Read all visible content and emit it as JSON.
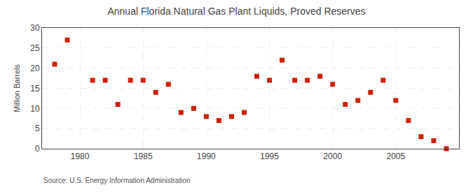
{
  "chart_data": {
    "type": "scatter",
    "title": "Annual Florida Natural Gas Plant Liquids, Proved Reserves",
    "ylabel": "Million Barrels",
    "annotations": [
      "Source: U.S. Energy Information Administration"
    ],
    "x": [
      1978,
      1979,
      1981,
      1982,
      1983,
      1984,
      1985,
      1986,
      1987,
      1988,
      1989,
      1990,
      1991,
      1992,
      1993,
      1994,
      1995,
      1996,
      1997,
      1998,
      1999,
      2000,
      2001,
      2002,
      2003,
      2004,
      2005,
      2006,
      2007,
      2008,
      2009
    ],
    "values": [
      21,
      27,
      17,
      17,
      11,
      17,
      17,
      14,
      16,
      9,
      10,
      8,
      7,
      8,
      9,
      18,
      17,
      22,
      17,
      17,
      18,
      16,
      11,
      12,
      14,
      17,
      12,
      7,
      3,
      2,
      0
    ],
    "color": "#cc2200",
    "marker": "square",
    "xlim": [
      1977.0,
      2010.0
    ],
    "ylim": [
      0,
      30
    ],
    "xticks": [
      1980,
      1985,
      1990,
      1995,
      2000,
      2005
    ],
    "yticks": [
      0,
      5,
      10,
      15,
      20,
      25,
      30
    ],
    "grid": true
  }
}
